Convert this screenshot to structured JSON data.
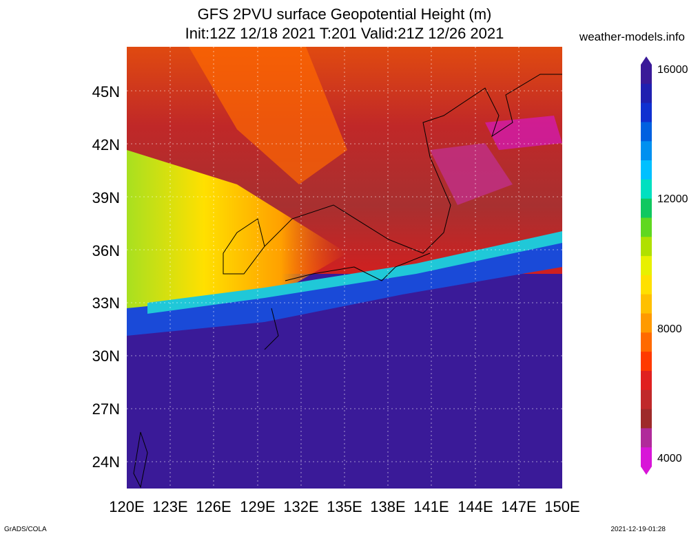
{
  "title_line1": "GFS 2PVU surface Geopotential Height (m)",
  "title_line2": "Init:12Z 12/18 2021 T:201 Valid:21Z 12/26 2021",
  "site": "weather-models.info",
  "lat_labels": [
    "45N",
    "42N",
    "39N",
    "36N",
    "33N",
    "30N",
    "27N",
    "24N"
  ],
  "lon_labels": [
    "120E",
    "123E",
    "126E",
    "129E",
    "132E",
    "135E",
    "138E",
    "141E",
    "144E",
    "147E",
    "150E"
  ],
  "colorbar": {
    "labels": [
      "16000",
      "12000",
      "8000",
      "4000"
    ],
    "colors": [
      "#d815d8",
      "#b02a9a",
      "#9e2a2a",
      "#c0282a",
      "#e02020",
      "#ff3a00",
      "#ff6a00",
      "#ff9a00",
      "#ffc000",
      "#ffe000",
      "#e8f000",
      "#b0e000",
      "#60d820",
      "#10c860",
      "#00e0c0",
      "#00c0ff",
      "#0090f0",
      "#0060e0",
      "#1030d0",
      "#2020b0",
      "#3a1a98"
    ]
  },
  "footer_left": "GrADS/COLA",
  "footer_right": "2021-12-19-01:28"
}
